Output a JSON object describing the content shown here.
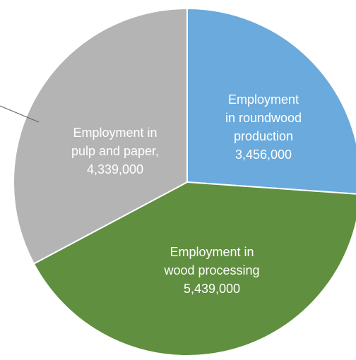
{
  "chart_data": {
    "type": "pie",
    "categories": [
      "Employment\nin roundwood\nproduction",
      "Employment in\nwood processing",
      "Employment in\npulp and paper,"
    ],
    "values": [
      3456000,
      5439000,
      4339000
    ],
    "value_labels": [
      "3,456,000",
      "5,439,000",
      "4,339,000"
    ],
    "colors": [
      "#6aaadc",
      "#5f8f3f",
      "#b4b4b4"
    ]
  }
}
